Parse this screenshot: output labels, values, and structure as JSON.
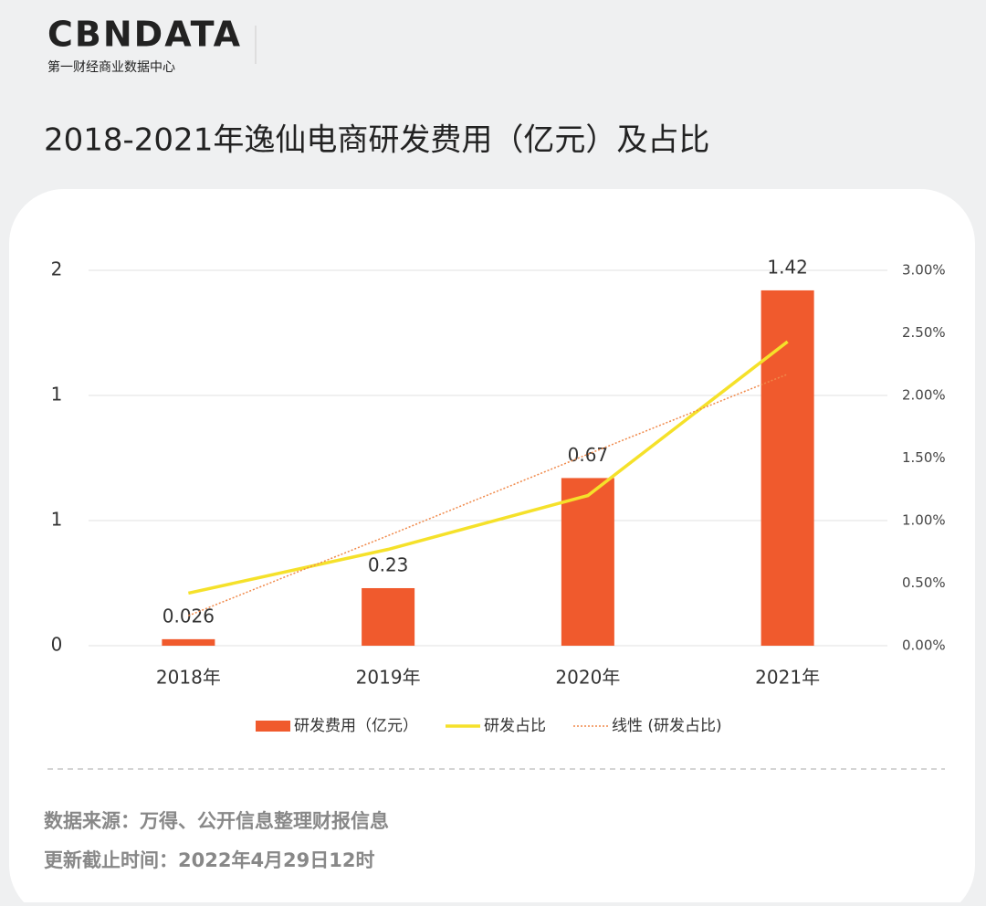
{
  "header": {
    "logo": "CBNDATA",
    "logo_subtitle": "第一财经商业数据中心"
  },
  "chart_data": {
    "type": "bar",
    "title": "2018-2021年逸仙电商研发费用（亿元）及占比",
    "categories": [
      "2018年",
      "2019年",
      "2020年",
      "2021年"
    ],
    "series": [
      {
        "name": "研发费用（亿元）",
        "type": "bar",
        "color": "#f05a2d",
        "values": [
          0.026,
          0.23,
          0.67,
          1.42
        ]
      },
      {
        "name": "研发占比",
        "type": "line",
        "axis": "y2",
        "color": "#f5e12a",
        "values": [
          0.42,
          0.77,
          1.2,
          2.43
        ]
      },
      {
        "name": "线性 (研发占比)",
        "type": "trend",
        "axis": "y2",
        "color": "#f0894a",
        "values": [
          0.24,
          0.88,
          1.53,
          2.17
        ]
      }
    ],
    "ylim": [
      0,
      1.5
    ],
    "yticks": [
      0,
      {
        "value": 0.5,
        "label": "1"
      },
      {
        "value": 1,
        "label": "1"
      },
      {
        "value": 1.5,
        "label": "2"
      }
    ],
    "y2lim": [
      0,
      3
    ],
    "y2ticks": [
      {
        "value": 0,
        "label": "0.00%"
      },
      {
        "value": 0.5,
        "label": "0.50%"
      },
      {
        "value": 1,
        "label": "1.00%"
      },
      {
        "value": 1.5,
        "label": "1.50%"
      },
      {
        "value": 2,
        "label": "2.00%"
      },
      {
        "value": 2.5,
        "label": "2.50%"
      },
      {
        "value": 3,
        "label": "3.00%"
      }
    ],
    "grid": true,
    "legend": "bottom"
  },
  "footer": {
    "source": "数据来源：万得、公开信息整理财报信息",
    "updated": "更新截止时间：2022年4月29日12时"
  }
}
